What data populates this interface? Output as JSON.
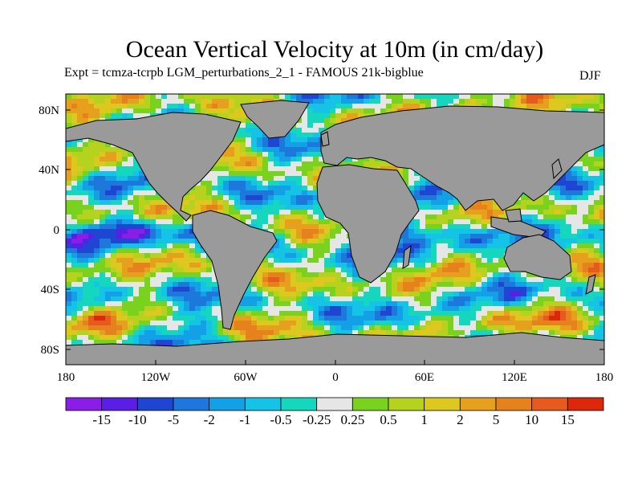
{
  "title": "Ocean Vertical Velocity at 10m (in cm/day)",
  "subtitle": "Expt = tcmza-tcrpb    LGM_perturbations_2_1 - FAMOUS 21k-bigblue",
  "season": "DJF",
  "map": {
    "land_color": "#9a9a9a",
    "lat_ticks": [
      "80N",
      "40N",
      "0",
      "40S",
      "80S"
    ],
    "lon_ticks": [
      "180",
      "120W",
      "60W",
      "0",
      "60E",
      "120E",
      "180"
    ]
  },
  "colorbar": {
    "colors": [
      "#8a1ee6",
      "#5a1ee6",
      "#1e46d2",
      "#1e78dc",
      "#14a0e6",
      "#14c3e6",
      "#14d7be",
      "#e6e6e6",
      "#78d21e",
      "#b4d21e",
      "#dcc81e",
      "#e6a01e",
      "#e6821e",
      "#e65a1e",
      "#dc280a"
    ],
    "labels": [
      "-15",
      "-10",
      "-5",
      "-2",
      "-1",
      "-0.5",
      "-0.25",
      "0.25",
      "0.5",
      "1",
      "2",
      "5",
      "10",
      "15"
    ]
  }
}
